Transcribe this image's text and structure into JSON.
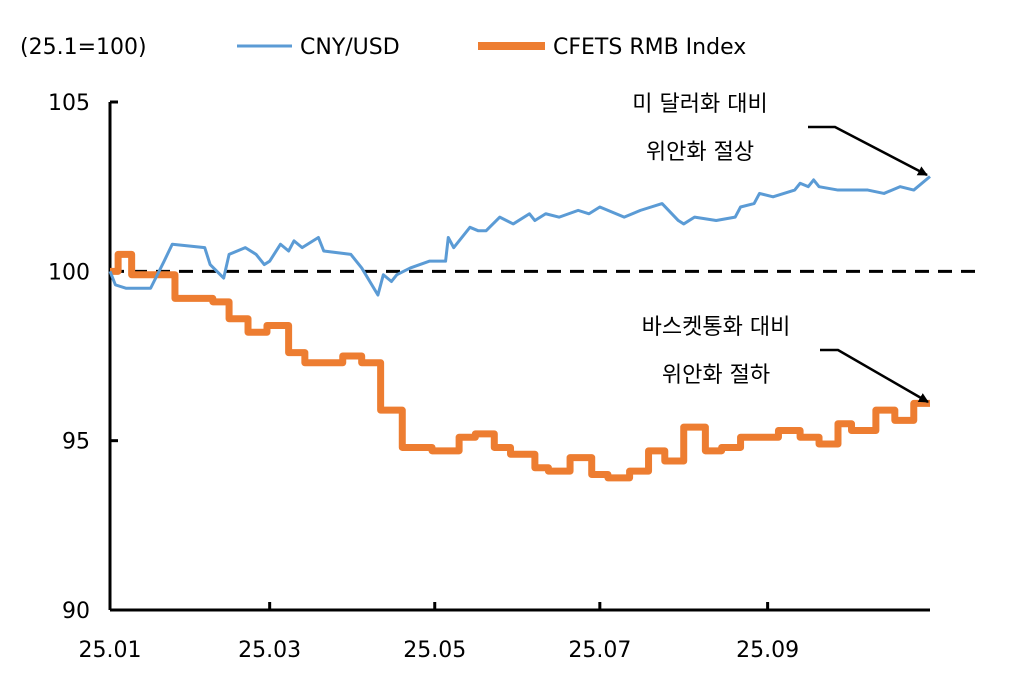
{
  "chart_data": {
    "type": "line",
    "unit_label": "(25.1=100)",
    "ylim": [
      90,
      105
    ],
    "yticks": [
      "90",
      "95",
      "100",
      "105"
    ],
    "xlim": [
      "2025-01-01",
      "2025-10-31"
    ],
    "xticks": [
      {
        "date": "2025-01-01",
        "label": "25.01"
      },
      {
        "date": "2025-03-01",
        "label": "25.03"
      },
      {
        "date": "2025-05-01",
        "label": "25.05"
      },
      {
        "date": "2025-07-01",
        "label": "25.07"
      },
      {
        "date": "2025-09-01",
        "label": "25.09"
      }
    ],
    "reference_line": {
      "value": 100,
      "style": "dashed",
      "color": "#000000"
    },
    "legend_placement": "top",
    "grid": false,
    "series": [
      {
        "name": "CNY/USD",
        "color": "#5B9BD5",
        "points": [
          [
            "2025-01-01",
            100.0
          ],
          [
            "2025-01-03",
            99.6
          ],
          [
            "2025-01-07",
            99.5
          ],
          [
            "2025-01-16",
            99.5
          ],
          [
            "2025-01-21",
            100.3
          ],
          [
            "2025-01-24",
            100.8
          ],
          [
            "2025-02-05",
            100.7
          ],
          [
            "2025-02-07",
            100.2
          ],
          [
            "2025-02-12",
            99.8
          ],
          [
            "2025-02-14",
            100.5
          ],
          [
            "2025-02-20",
            100.7
          ],
          [
            "2025-02-24",
            100.5
          ],
          [
            "2025-02-27",
            100.2
          ],
          [
            "2025-03-01",
            100.3
          ],
          [
            "2025-03-05",
            100.8
          ],
          [
            "2025-03-08",
            100.6
          ],
          [
            "2025-03-10",
            100.9
          ],
          [
            "2025-03-13",
            100.7
          ],
          [
            "2025-03-19",
            101.0
          ],
          [
            "2025-03-21",
            100.6
          ],
          [
            "2025-03-31",
            100.5
          ],
          [
            "2025-04-04",
            100.1
          ],
          [
            "2025-04-10",
            99.3
          ],
          [
            "2025-04-12",
            99.9
          ],
          [
            "2025-04-15",
            99.7
          ],
          [
            "2025-04-17",
            99.9
          ],
          [
            "2025-04-22",
            100.1
          ],
          [
            "2025-04-29",
            100.3
          ],
          [
            "2025-05-05",
            100.3
          ],
          [
            "2025-05-06",
            101.0
          ],
          [
            "2025-05-08",
            100.7
          ],
          [
            "2025-05-14",
            101.3
          ],
          [
            "2025-05-17",
            101.2
          ],
          [
            "2025-05-20",
            101.2
          ],
          [
            "2025-05-25",
            101.6
          ],
          [
            "2025-05-30",
            101.4
          ],
          [
            "2025-06-05",
            101.7
          ],
          [
            "2025-06-07",
            101.5
          ],
          [
            "2025-06-11",
            101.7
          ],
          [
            "2025-06-16",
            101.6
          ],
          [
            "2025-06-23",
            101.8
          ],
          [
            "2025-06-27",
            101.7
          ],
          [
            "2025-07-01",
            101.9
          ],
          [
            "2025-07-10",
            101.6
          ],
          [
            "2025-07-16",
            101.8
          ],
          [
            "2025-07-24",
            102.0
          ],
          [
            "2025-07-30",
            101.5
          ],
          [
            "2025-08-01",
            101.4
          ],
          [
            "2025-08-05",
            101.6
          ],
          [
            "2025-08-13",
            101.5
          ],
          [
            "2025-08-20",
            101.6
          ],
          [
            "2025-08-22",
            101.9
          ],
          [
            "2025-08-27",
            102.0
          ],
          [
            "2025-08-29",
            102.3
          ],
          [
            "2025-09-03",
            102.2
          ],
          [
            "2025-09-11",
            102.4
          ],
          [
            "2025-09-13",
            102.6
          ],
          [
            "2025-09-16",
            102.5
          ],
          [
            "2025-09-18",
            102.7
          ],
          [
            "2025-09-20",
            102.5
          ],
          [
            "2025-09-27",
            102.4
          ],
          [
            "2025-10-08",
            102.4
          ],
          [
            "2025-10-14",
            102.3
          ],
          [
            "2025-10-20",
            102.5
          ],
          [
            "2025-10-25",
            102.4
          ],
          [
            "2025-10-31",
            102.8
          ]
        ]
      },
      {
        "name": "CFETS RMB Index",
        "color": "#ED7D31",
        "step": true,
        "points": [
          [
            "2025-01-01",
            100.0
          ],
          [
            "2025-01-04",
            100.5
          ],
          [
            "2025-01-09",
            99.9
          ],
          [
            "2025-01-25",
            99.2
          ],
          [
            "2025-02-08",
            99.1
          ],
          [
            "2025-02-14",
            98.6
          ],
          [
            "2025-02-21",
            98.2
          ],
          [
            "2025-02-28",
            98.4
          ],
          [
            "2025-03-08",
            97.6
          ],
          [
            "2025-03-14",
            97.3
          ],
          [
            "2025-03-28",
            97.5
          ],
          [
            "2025-04-04",
            97.3
          ],
          [
            "2025-04-11",
            95.9
          ],
          [
            "2025-04-19",
            94.8
          ],
          [
            "2025-04-30",
            94.7
          ],
          [
            "2025-05-10",
            95.1
          ],
          [
            "2025-05-16",
            95.2
          ],
          [
            "2025-05-23",
            94.8
          ],
          [
            "2025-05-29",
            94.6
          ],
          [
            "2025-06-07",
            94.2
          ],
          [
            "2025-06-12",
            94.1
          ],
          [
            "2025-06-20",
            94.5
          ],
          [
            "2025-06-28",
            94.0
          ],
          [
            "2025-07-04",
            93.9
          ],
          [
            "2025-07-12",
            94.1
          ],
          [
            "2025-07-19",
            94.7
          ],
          [
            "2025-07-25",
            94.4
          ],
          [
            "2025-08-01",
            95.4
          ],
          [
            "2025-08-09",
            94.7
          ],
          [
            "2025-08-15",
            94.8
          ],
          [
            "2025-08-22",
            95.1
          ],
          [
            "2025-09-05",
            95.3
          ],
          [
            "2025-09-13",
            95.1
          ],
          [
            "2025-09-20",
            94.9
          ],
          [
            "2025-09-27",
            95.5
          ],
          [
            "2025-10-02",
            95.3
          ],
          [
            "2025-10-11",
            95.9
          ],
          [
            "2025-10-18",
            95.6
          ],
          [
            "2025-10-25",
            96.1
          ],
          [
            "2025-10-31",
            96.1
          ]
        ]
      }
    ],
    "annotations": [
      {
        "lines": [
          "미 달러화 대비",
          "위안화 절상"
        ],
        "target_series": "CNY/USD"
      },
      {
        "lines": [
          "바스켓통화 대비",
          "위안화 절하"
        ],
        "target_series": "CFETS RMB Index"
      }
    ]
  }
}
